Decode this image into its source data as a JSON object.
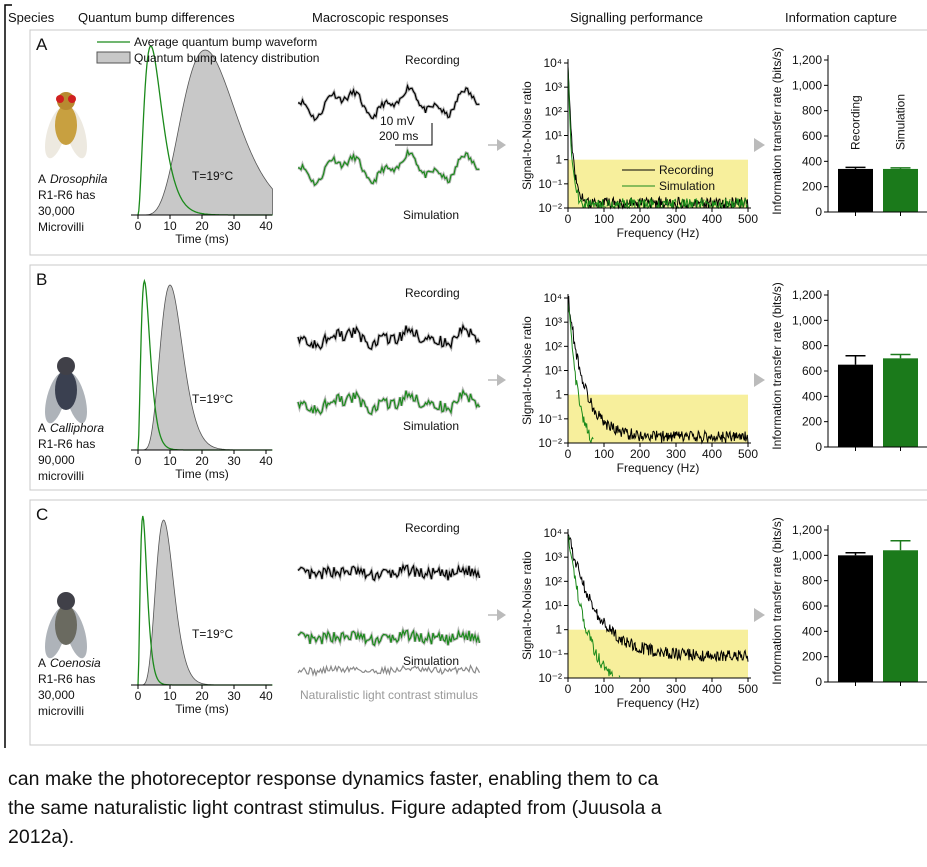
{
  "header": [
    "Species",
    "Quantum bump differences",
    "Macroscopic responses",
    "Signalling performance",
    "Information capture"
  ],
  "legend": {
    "waveform": "Average quantum bump waveform",
    "latency": "Quantum bump latency distribution"
  },
  "scale_bar": {
    "voltage": "10 mV",
    "time": "200 ms"
  },
  "stimulus_label": "Naturalistic light contrast stimulus",
  "axes": {
    "bump": {
      "xlabel": "Time (ms)",
      "xticks": [
        0,
        10,
        20,
        30,
        40
      ],
      "temperature": "T=19°C"
    },
    "trace_labels": [
      "Recording",
      "Simulation"
    ],
    "snr": {
      "ylabel": "Signal-to-Noise ratio",
      "xlabel": "Frequency (Hz)",
      "log": true,
      "ylim": [
        0.01,
        10000
      ],
      "xlim": [
        0,
        500
      ],
      "yticks": [
        {
          "value": 10000,
          "label": "10⁴"
        },
        {
          "value": 1000,
          "label": "10³"
        },
        {
          "value": 100,
          "label": "10²"
        },
        {
          "value": 10,
          "label": "10¹"
        },
        1,
        {
          "value": 0.1,
          "label": "10⁻¹"
        },
        {
          "value": 0.01,
          "label": "10⁻²"
        }
      ],
      "xticks": [
        0,
        100,
        200,
        300,
        400,
        500
      ]
    },
    "info": {
      "ylabel": "Information transfer rate (bits/s)",
      "ylim": [
        0,
        1200
      ],
      "yticks": [
        0,
        200,
        400,
        600,
        800,
        {
          "value": 1000,
          "label": "1,000"
        },
        {
          "value": 1200,
          "label": "1,200"
        }
      ],
      "categories": [
        "Recording",
        "Simulation"
      ],
      "colors": [
        "#000000",
        "#1b7a1b"
      ]
    }
  },
  "panels": [
    {
      "label": "A",
      "species_prefix": "A",
      "species": "Drosophila",
      "species_lines": [
        "R1-R6 has",
        "30,000",
        "Microvilli"
      ],
      "info_values": [
        340,
        340
      ],
      "info_errors": [
        12,
        8
      ]
    },
    {
      "label": "B",
      "species_prefix": "A",
      "species": "Calliphora",
      "species_lines": [
        "R1-R6 has",
        "90,000",
        "microvilli"
      ],
      "info_values": [
        650,
        700
      ],
      "info_errors": [
        70,
        30
      ]
    },
    {
      "label": "C",
      "species_prefix": "A",
      "species": "Coenosia",
      "species_lines": [
        "R1-R6 has",
        "30,000",
        "microvilli"
      ],
      "info_values": [
        1000,
        1040
      ],
      "info_errors": [
        20,
        75
      ]
    }
  ],
  "caption": [
    "can make the photoreceptor response dynamics faster, enabling them to ca",
    "the same naturalistic light contrast stimulus. Figure adapted from (Juusola a",
    "2012a)."
  ]
}
